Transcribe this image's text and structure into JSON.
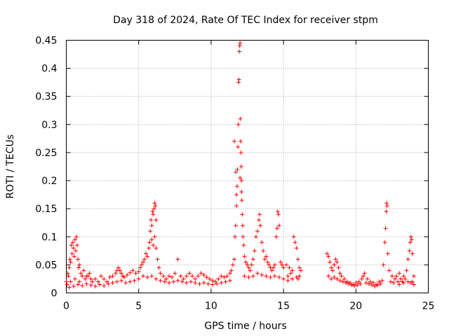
{
  "chart_data": {
    "type": "scatter",
    "title": "Day 318 of 2024, Rate Of TEC Index for receiver stpm",
    "xlabel": "GPS time / hours",
    "ylabel": "ROTI / TECUs",
    "xlim": [
      0,
      25
    ],
    "ylim": [
      0,
      0.45
    ],
    "xticks": [
      0,
      5,
      10,
      15,
      20,
      25
    ],
    "xtick_labels": [
      "0",
      "5",
      "10",
      "15",
      "20",
      "25"
    ],
    "yticks": [
      0,
      0.05,
      0.1,
      0.15,
      0.2,
      0.25,
      0.3,
      0.35,
      0.4,
      0.45
    ],
    "ytick_labels": [
      "0",
      "0.05",
      "0.1",
      "0.15",
      "0.2",
      "0.25",
      "0.3",
      "0.35",
      "0.4",
      "0.45"
    ],
    "grid": true,
    "marker": "+",
    "color": "#ff0000",
    "series": [
      {
        "name": "ROTI",
        "points": [
          [
            0.0,
            0.02
          ],
          [
            0.1,
            0.035
          ],
          [
            0.15,
            0.03
          ],
          [
            0.2,
            0.045
          ],
          [
            0.25,
            0.06
          ],
          [
            0.3,
            0.055
          ],
          [
            0.35,
            0.085
          ],
          [
            0.4,
            0.07
          ],
          [
            0.45,
            0.09
          ],
          [
            0.5,
            0.08
          ],
          [
            0.55,
            0.065
          ],
          [
            0.6,
            0.095
          ],
          [
            0.65,
            0.075
          ],
          [
            0.7,
            0.1
          ],
          [
            0.75,
            0.085
          ],
          [
            0.8,
            0.06
          ],
          [
            0.85,
            0.045
          ],
          [
            0.9,
            0.05
          ],
          [
            1.0,
            0.035
          ],
          [
            1.1,
            0.03
          ],
          [
            1.2,
            0.04
          ],
          [
            1.3,
            0.025
          ],
          [
            1.4,
            0.03
          ],
          [
            0.05,
            0.015
          ],
          [
            0.3,
            0.02
          ],
          [
            0.6,
            0.025
          ],
          [
            0.9,
            0.02
          ],
          [
            1.5,
            0.03
          ],
          [
            1.6,
            0.035
          ],
          [
            1.7,
            0.025
          ],
          [
            1.8,
            0.02
          ],
          [
            2.0,
            0.025
          ],
          [
            2.2,
            0.02
          ],
          [
            2.4,
            0.03
          ],
          [
            2.6,
            0.025
          ],
          [
            2.8,
            0.02
          ],
          [
            3.0,
            0.028
          ],
          [
            3.2,
            0.03
          ],
          [
            3.4,
            0.035
          ],
          [
            3.5,
            0.04
          ],
          [
            3.6,
            0.045
          ],
          [
            3.7,
            0.04
          ],
          [
            3.8,
            0.035
          ],
          [
            3.9,
            0.03
          ],
          [
            4.0,
            0.028
          ],
          [
            4.2,
            0.032
          ],
          [
            4.4,
            0.036
          ],
          [
            4.6,
            0.04
          ],
          [
            4.8,
            0.035
          ],
          [
            5.0,
            0.038
          ],
          [
            5.1,
            0.045
          ],
          [
            5.2,
            0.05
          ],
          [
            5.3,
            0.055
          ],
          [
            5.4,
            0.06
          ],
          [
            5.5,
            0.07
          ],
          [
            5.6,
            0.065
          ],
          [
            5.7,
            0.08
          ],
          [
            5.75,
            0.09
          ],
          [
            5.8,
            0.11
          ],
          [
            5.85,
            0.13
          ],
          [
            5.9,
            0.12
          ],
          [
            5.95,
            0.145
          ],
          [
            6.0,
            0.14
          ],
          [
            6.05,
            0.15
          ],
          [
            6.1,
            0.16
          ],
          [
            6.15,
            0.155
          ],
          [
            6.2,
            0.13
          ],
          [
            6.1,
            0.1
          ],
          [
            6.0,
            0.085
          ],
          [
            5.9,
            0.095
          ],
          [
            6.2,
            0.08
          ],
          [
            6.3,
            0.06
          ],
          [
            6.4,
            0.045
          ],
          [
            6.5,
            0.035
          ],
          [
            6.7,
            0.03
          ],
          [
            6.9,
            0.025
          ],
          [
            7.1,
            0.03
          ],
          [
            7.3,
            0.028
          ],
          [
            7.5,
            0.035
          ],
          [
            7.7,
            0.06
          ],
          [
            7.9,
            0.03
          ],
          [
            8.1,
            0.025
          ],
          [
            8.3,
            0.03
          ],
          [
            8.5,
            0.035
          ],
          [
            8.7,
            0.03
          ],
          [
            8.9,
            0.025
          ],
          [
            9.1,
            0.03
          ],
          [
            9.3,
            0.035
          ],
          [
            9.5,
            0.032
          ],
          [
            9.7,
            0.028
          ],
          [
            9.9,
            0.025
          ],
          [
            10.1,
            0.022
          ],
          [
            10.3,
            0.02
          ],
          [
            10.5,
            0.025
          ],
          [
            10.7,
            0.03
          ],
          [
            10.9,
            0.028
          ],
          [
            11.1,
            0.03
          ],
          [
            11.3,
            0.035
          ],
          [
            11.4,
            0.04
          ],
          [
            11.5,
            0.05
          ],
          [
            11.6,
            0.06
          ],
          [
            11.65,
            0.1
          ],
          [
            11.7,
            0.12
          ],
          [
            11.75,
            0.155
          ],
          [
            11.8,
            0.19
          ],
          [
            11.82,
            0.22
          ],
          [
            11.85,
            0.26
          ],
          [
            11.88,
            0.3
          ],
          [
            11.9,
            0.375
          ],
          [
            11.92,
            0.38
          ],
          [
            11.95,
            0.43
          ],
          [
            11.97,
            0.44
          ],
          [
            12.0,
            0.445
          ],
          [
            12.02,
            0.31
          ],
          [
            12.04,
            0.27
          ],
          [
            12.06,
            0.25
          ],
          [
            12.08,
            0.225
          ],
          [
            12.1,
            0.2
          ],
          [
            12.12,
            0.165
          ],
          [
            12.15,
            0.14
          ],
          [
            12.18,
            0.12
          ],
          [
            12.2,
            0.1
          ],
          [
            11.6,
            0.27
          ],
          [
            11.7,
            0.215
          ],
          [
            11.75,
            0.175
          ],
          [
            12.0,
            0.205
          ],
          [
            12.1,
            0.18
          ],
          [
            12.25,
            0.085
          ],
          [
            12.3,
            0.065
          ],
          [
            12.4,
            0.055
          ],
          [
            12.5,
            0.05
          ],
          [
            12.6,
            0.045
          ],
          [
            12.7,
            0.04
          ],
          [
            12.8,
            0.05
          ],
          [
            12.9,
            0.06
          ],
          [
            13.0,
            0.075
          ],
          [
            13.1,
            0.1
          ],
          [
            13.2,
            0.11
          ],
          [
            13.3,
            0.13
          ],
          [
            13.35,
            0.14
          ],
          [
            13.4,
            0.12
          ],
          [
            13.5,
            0.09
          ],
          [
            13.6,
            0.075
          ],
          [
            13.7,
            0.06
          ],
          [
            13.8,
            0.065
          ],
          [
            13.9,
            0.055
          ],
          [
            14.0,
            0.05
          ],
          [
            14.1,
            0.045
          ],
          [
            14.2,
            0.04
          ],
          [
            14.3,
            0.045
          ],
          [
            14.4,
            0.05
          ],
          [
            14.5,
            0.1
          ],
          [
            14.55,
            0.115
          ],
          [
            14.6,
            0.145
          ],
          [
            14.65,
            0.14
          ],
          [
            14.7,
            0.12
          ],
          [
            14.8,
            0.055
          ],
          [
            14.9,
            0.05
          ],
          [
            15.0,
            0.045
          ],
          [
            15.2,
            0.05
          ],
          [
            15.4,
            0.045
          ],
          [
            15.6,
            0.04
          ],
          [
            15.7,
            0.1
          ],
          [
            15.8,
            0.09
          ],
          [
            15.9,
            0.08
          ],
          [
            16.0,
            0.06
          ],
          [
            16.1,
            0.045
          ],
          [
            16.2,
            0.04
          ],
          [
            15.5,
            0.035
          ],
          [
            15.3,
            0.03
          ],
          [
            16.0,
            0.025
          ],
          [
            18.0,
            0.07
          ],
          [
            18.1,
            0.065
          ],
          [
            18.2,
            0.055
          ],
          [
            18.3,
            0.045
          ],
          [
            18.4,
            0.04
          ],
          [
            18.5,
            0.05
          ],
          [
            18.6,
            0.06
          ],
          [
            18.7,
            0.055
          ],
          [
            18.8,
            0.045
          ],
          [
            18.9,
            0.035
          ],
          [
            19.0,
            0.03
          ],
          [
            19.2,
            0.025
          ],
          [
            19.4,
            0.02
          ],
          [
            19.6,
            0.018
          ],
          [
            19.8,
            0.015
          ],
          [
            20.0,
            0.018
          ],
          [
            20.2,
            0.02
          ],
          [
            20.4,
            0.025
          ],
          [
            20.5,
            0.03
          ],
          [
            20.6,
            0.035
          ],
          [
            20.8,
            0.025
          ],
          [
            21.0,
            0.02
          ],
          [
            21.2,
            0.018
          ],
          [
            21.4,
            0.015
          ],
          [
            21.6,
            0.02
          ],
          [
            21.8,
            0.022
          ],
          [
            21.9,
            0.05
          ],
          [
            22.0,
            0.09
          ],
          [
            22.05,
            0.115
          ],
          [
            22.1,
            0.145
          ],
          [
            22.12,
            0.16
          ],
          [
            22.15,
            0.155
          ],
          [
            22.2,
            0.07
          ],
          [
            22.3,
            0.04
          ],
          [
            22.5,
            0.03
          ],
          [
            22.7,
            0.025
          ],
          [
            22.9,
            0.02
          ],
          [
            23.1,
            0.025
          ],
          [
            23.3,
            0.03
          ],
          [
            23.5,
            0.04
          ],
          [
            23.6,
            0.06
          ],
          [
            23.7,
            0.075
          ],
          [
            23.75,
            0.09
          ],
          [
            23.8,
            0.1
          ],
          [
            23.85,
            0.095
          ],
          [
            23.9,
            0.07
          ],
          [
            24.0,
            0.03
          ],
          [
            22.8,
            0.03
          ],
          [
            23.0,
            0.035
          ],
          [
            23.2,
            0.02
          ],
          [
            23.4,
            0.025
          ],
          [
            23.9,
            0.02
          ],
          [
            24.0,
            0.015
          ],
          [
            0.2,
            0.01
          ],
          [
            0.5,
            0.012
          ],
          [
            0.8,
            0.015
          ],
          [
            1.1,
            0.013
          ],
          [
            1.4,
            0.016
          ],
          [
            1.7,
            0.014
          ],
          [
            2.0,
            0.012
          ],
          [
            2.3,
            0.015
          ],
          [
            2.6,
            0.013
          ],
          [
            2.9,
            0.016
          ],
          [
            3.2,
            0.018
          ],
          [
            3.5,
            0.02
          ],
          [
            3.8,
            0.022
          ],
          [
            4.1,
            0.018
          ],
          [
            4.4,
            0.02
          ],
          [
            4.7,
            0.022
          ],
          [
            5.0,
            0.025
          ],
          [
            5.3,
            0.03
          ],
          [
            5.6,
            0.028
          ],
          [
            5.9,
            0.03
          ],
          [
            6.2,
            0.025
          ],
          [
            6.5,
            0.022
          ],
          [
            6.8,
            0.02
          ],
          [
            7.1,
            0.018
          ],
          [
            7.4,
            0.02
          ],
          [
            7.7,
            0.022
          ],
          [
            8.0,
            0.02
          ],
          [
            8.3,
            0.018
          ],
          [
            8.6,
            0.02
          ],
          [
            8.9,
            0.018
          ],
          [
            9.2,
            0.016
          ],
          [
            9.5,
            0.018
          ],
          [
            9.8,
            0.016
          ],
          [
            10.1,
            0.015
          ],
          [
            10.4,
            0.016
          ],
          [
            10.7,
            0.018
          ],
          [
            11.0,
            0.02
          ],
          [
            11.3,
            0.022
          ],
          [
            12.3,
            0.03
          ],
          [
            12.6,
            0.028
          ],
          [
            12.9,
            0.03
          ],
          [
            13.2,
            0.035
          ],
          [
            13.5,
            0.032
          ],
          [
            13.8,
            0.03
          ],
          [
            14.1,
            0.028
          ],
          [
            14.4,
            0.03
          ],
          [
            14.7,
            0.028
          ],
          [
            15.0,
            0.025
          ],
          [
            15.3,
            0.022
          ],
          [
            15.6,
            0.025
          ],
          [
            15.9,
            0.028
          ],
          [
            16.1,
            0.03
          ],
          [
            18.1,
            0.03
          ],
          [
            18.3,
            0.025
          ],
          [
            18.5,
            0.028
          ],
          [
            18.7,
            0.025
          ],
          [
            18.9,
            0.022
          ],
          [
            19.1,
            0.02
          ],
          [
            19.3,
            0.018
          ],
          [
            19.5,
            0.016
          ],
          [
            19.7,
            0.014
          ],
          [
            19.9,
            0.013
          ],
          [
            20.1,
            0.014
          ],
          [
            20.3,
            0.016
          ],
          [
            20.7,
            0.018
          ],
          [
            20.9,
            0.016
          ],
          [
            21.1,
            0.014
          ],
          [
            21.3,
            0.012
          ],
          [
            21.5,
            0.014
          ],
          [
            21.7,
            0.016
          ],
          [
            22.4,
            0.02
          ],
          [
            22.6,
            0.018
          ],
          [
            23.0,
            0.015
          ],
          [
            23.3,
            0.018
          ],
          [
            23.6,
            0.02
          ],
          [
            23.8,
            0.018
          ]
        ]
      }
    ]
  }
}
